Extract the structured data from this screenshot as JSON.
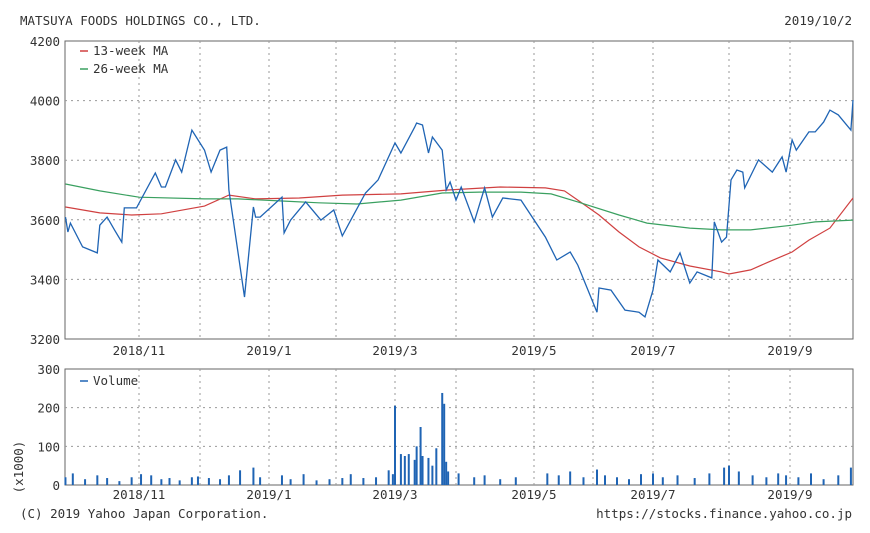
{
  "header": {
    "title": "MATSUYA FOODS HOLDINGS CO., LTD.",
    "date": "2019/10/2"
  },
  "footer": {
    "copyright": "(C) 2019 Yahoo Japan Corporation.",
    "url": "https://stocks.finance.yahoo.co.jp"
  },
  "colors": {
    "price": "#1f64b4",
    "ma13": "#d04040",
    "ma26": "#3aa060",
    "volume": "#1f64b4",
    "grid": "#999999"
  },
  "chart_data": [
    {
      "type": "line",
      "title": "MATSUYA FOODS HOLDINGS CO., LTD.",
      "ylim": [
        3200,
        4200
      ],
      "yticks": [
        "4200",
        "4000",
        "3800",
        "3600",
        "3400",
        "3200"
      ],
      "xticks": [
        {
          "label": "2018/11",
          "date": "2018-11-01"
        },
        {
          "label": "2019/1",
          "date": "2019-01-01"
        },
        {
          "label": "2019/3",
          "date": "2019-03-01"
        },
        {
          "label": "2019/5",
          "date": "2019-05-01"
        },
        {
          "label": "2019/7",
          "date": "2019-07-01"
        },
        {
          "label": "2019/9",
          "date": "2019-09-01"
        }
      ],
      "grid": true,
      "legend": [
        "13-week MA",
        "26-week MA"
      ],
      "legend_position": "top-left",
      "series": [
        {
          "name": "Price",
          "points": [
            [
              "2018-10-02",
              3609
            ],
            [
              "2018-10-03",
              3559
            ],
            [
              "2018-10-04",
              3589
            ],
            [
              "2018-10-09",
              3509
            ],
            [
              "2018-10-15",
              3489
            ],
            [
              "2018-10-16",
              3582
            ],
            [
              "2018-10-19",
              3609
            ],
            [
              "2018-10-22",
              3566
            ],
            [
              "2018-10-25",
              3525
            ],
            [
              "2018-10-26",
              3640
            ],
            [
              "2018-10-31",
              3640
            ],
            [
              "2018-11-09",
              3757
            ],
            [
              "2018-11-12",
              3710
            ],
            [
              "2018-11-14",
              3710
            ],
            [
              "2018-11-19",
              3801
            ],
            [
              "2018-11-22",
              3760
            ],
            [
              "2018-11-27",
              3901
            ],
            [
              "2018-12-03",
              3834
            ],
            [
              "2018-12-06",
              3760
            ],
            [
              "2018-12-10",
              3834
            ],
            [
              "2018-12-13",
              3844
            ],
            [
              "2018-12-14",
              3700
            ],
            [
              "2018-12-21",
              3341
            ],
            [
              "2018-12-25",
              3643
            ],
            [
              "2018-12-26",
              3609
            ],
            [
              "2018-12-28",
              3609
            ],
            [
              "2019-01-07",
              3676
            ],
            [
              "2019-01-08",
              3556
            ],
            [
              "2019-01-11",
              3599
            ],
            [
              "2019-01-18",
              3660
            ],
            [
              "2019-01-25",
              3599
            ],
            [
              "2019-01-31",
              3633
            ],
            [
              "2019-02-04",
              3546
            ],
            [
              "2019-02-08",
              3599
            ],
            [
              "2019-02-15",
              3690
            ],
            [
              "2019-02-21",
              3734
            ],
            [
              "2019-03-01",
              3858
            ],
            [
              "2019-03-04",
              3824
            ],
            [
              "2019-03-11",
              3911
            ],
            [
              "2019-03-12",
              3925
            ],
            [
              "2019-03-15",
              3918
            ],
            [
              "2019-03-18",
              3824
            ],
            [
              "2019-03-20",
              3878
            ],
            [
              "2019-03-25",
              3834
            ],
            [
              "2019-03-27",
              3700
            ],
            [
              "2019-03-29",
              3727
            ],
            [
              "2019-04-01",
              3666
            ],
            [
              "2019-04-03",
              3710
            ],
            [
              "2019-04-08",
              3593
            ],
            [
              "2019-04-12",
              3707
            ],
            [
              "2019-04-15",
              3609
            ],
            [
              "2019-04-19",
              3673
            ],
            [
              "2019-04-26",
              3666
            ],
            [
              "2019-05-07",
              3542
            ],
            [
              "2019-05-13",
              3465
            ],
            [
              "2019-05-20",
              3492
            ],
            [
              "2019-05-24",
              3448
            ],
            [
              "2019-06-03",
              3290
            ],
            [
              "2019-06-04",
              3371
            ],
            [
              "2019-06-10",
              3364
            ],
            [
              "2019-06-17",
              3297
            ],
            [
              "2019-06-24",
              3290
            ],
            [
              "2019-06-27",
              3274
            ],
            [
              "2019-07-01",
              3364
            ],
            [
              "2019-07-03",
              3465
            ],
            [
              "2019-07-08",
              3425
            ],
            [
              "2019-07-12",
              3489
            ],
            [
              "2019-07-16",
              3388
            ],
            [
              "2019-07-19",
              3425
            ],
            [
              "2019-07-25",
              3405
            ],
            [
              "2019-07-26",
              3593
            ],
            [
              "2019-07-29",
              3525
            ],
            [
              "2019-07-31",
              3542
            ],
            [
              "2019-08-02",
              3734
            ],
            [
              "2019-08-05",
              3767
            ],
            [
              "2019-08-08",
              3760
            ],
            [
              "2019-08-09",
              3707
            ],
            [
              "2019-08-16",
              3801
            ],
            [
              "2019-08-23",
              3760
            ],
            [
              "2019-08-28",
              3811
            ],
            [
              "2019-08-30",
              3760
            ],
            [
              "2019-09-02",
              3868
            ],
            [
              "2019-09-04",
              3834
            ],
            [
              "2019-09-10",
              3895
            ],
            [
              "2019-09-13",
              3895
            ],
            [
              "2019-09-17",
              3928
            ],
            [
              "2019-09-20",
              3968
            ],
            [
              "2019-09-24",
              3952
            ],
            [
              "2019-09-30",
              3901
            ],
            [
              "2019-10-02",
              4002
            ]
          ]
        },
        {
          "name": "13-week MA",
          "points": [
            [
              "2018-10-02",
              3643
            ],
            [
              "2018-10-16",
              3623
            ],
            [
              "2018-10-29",
              3616
            ],
            [
              "2018-11-12",
              3620
            ],
            [
              "2018-12-03",
              3646
            ],
            [
              "2018-12-14",
              3683
            ],
            [
              "2018-12-26",
              3670
            ],
            [
              "2019-01-15",
              3673
            ],
            [
              "2019-02-04",
              3683
            ],
            [
              "2019-03-04",
              3687
            ],
            [
              "2019-03-28",
              3700
            ],
            [
              "2019-04-18",
              3710
            ],
            [
              "2019-05-07",
              3707
            ],
            [
              "2019-05-17",
              3697
            ],
            [
              "2019-05-24",
              3666
            ],
            [
              "2019-06-04",
              3616
            ],
            [
              "2019-06-14",
              3559
            ],
            [
              "2019-06-24",
              3509
            ],
            [
              "2019-07-04",
              3472
            ],
            [
              "2019-07-16",
              3445
            ],
            [
              "2019-07-29",
              3425
            ],
            [
              "2019-08-01",
              3418
            ],
            [
              "2019-08-12",
              3432
            ],
            [
              "2019-08-21",
              3458
            ],
            [
              "2019-09-02",
              3492
            ],
            [
              "2019-09-10",
              3532
            ],
            [
              "2019-09-20",
              3572
            ],
            [
              "2019-10-02",
              3673
            ]
          ]
        },
        {
          "name": "26-week MA",
          "points": [
            [
              "2018-10-02",
              3720
            ],
            [
              "2018-10-16",
              3697
            ],
            [
              "2018-11-01",
              3676
            ],
            [
              "2018-12-03",
              3670
            ],
            [
              "2018-12-18",
              3670
            ],
            [
              "2019-01-07",
              3663
            ],
            [
              "2019-01-24",
              3657
            ],
            [
              "2019-02-11",
              3653
            ],
            [
              "2019-03-04",
              3666
            ],
            [
              "2019-03-25",
              3690
            ],
            [
              "2019-04-10",
              3693
            ],
            [
              "2019-04-26",
              3693
            ],
            [
              "2019-05-10",
              3687
            ],
            [
              "2019-05-24",
              3660
            ],
            [
              "2019-06-14",
              3616
            ],
            [
              "2019-06-28",
              3589
            ],
            [
              "2019-07-16",
              3572
            ],
            [
              "2019-07-29",
              3566
            ],
            [
              "2019-08-12",
              3566
            ],
            [
              "2019-09-02",
              3582
            ],
            [
              "2019-09-13",
              3593
            ],
            [
              "2019-10-02",
              3599
            ]
          ]
        }
      ]
    },
    {
      "type": "bar",
      "ylabel": "(x1000)",
      "ylim": [
        0,
        300
      ],
      "yticks": [
        "300",
        "200",
        "100",
        "0"
      ],
      "xticks": [
        {
          "label": "2018/11",
          "date": "2018-11-01"
        },
        {
          "label": "2019/1",
          "date": "2019-01-01"
        },
        {
          "label": "2019/3",
          "date": "2019-03-01"
        },
        {
          "label": "2019/5",
          "date": "2019-05-01"
        },
        {
          "label": "2019/7",
          "date": "2019-07-01"
        },
        {
          "label": "2019/9",
          "date": "2019-09-01"
        }
      ],
      "legend": [
        "Volume"
      ],
      "legend_position": "top-left",
      "series": [
        {
          "name": "Volume",
          "points": [
            [
              "2018-10-02",
              20
            ],
            [
              "2018-10-05",
              30
            ],
            [
              "2018-10-10",
              15
            ],
            [
              "2018-10-15",
              25
            ],
            [
              "2018-10-19",
              18
            ],
            [
              "2018-10-24",
              10
            ],
            [
              "2018-10-29",
              20
            ],
            [
              "2018-11-02",
              28
            ],
            [
              "2018-11-07",
              25
            ],
            [
              "2018-11-12",
              15
            ],
            [
              "2018-11-16",
              18
            ],
            [
              "2018-11-21",
              12
            ],
            [
              "2018-11-27",
              20
            ],
            [
              "2018-11-30",
              22
            ],
            [
              "2018-12-05",
              18
            ],
            [
              "2018-12-10",
              15
            ],
            [
              "2018-12-14",
              25
            ],
            [
              "2018-12-19",
              38
            ],
            [
              "2018-12-25",
              45
            ],
            [
              "2018-12-28",
              20
            ],
            [
              "2019-01-07",
              25
            ],
            [
              "2019-01-11",
              15
            ],
            [
              "2019-01-17",
              28
            ],
            [
              "2019-01-23",
              12
            ],
            [
              "2019-01-29",
              15
            ],
            [
              "2019-02-04",
              18
            ],
            [
              "2019-02-08",
              28
            ],
            [
              "2019-02-14",
              18
            ],
            [
              "2019-02-20",
              20
            ],
            [
              "2019-02-26",
              38
            ],
            [
              "2019-02-28",
              28
            ],
            [
              "2019-03-01",
              205
            ],
            [
              "2019-03-04",
              80
            ],
            [
              "2019-03-06",
              75
            ],
            [
              "2019-03-08",
              80
            ],
            [
              "2019-03-11",
              65
            ],
            [
              "2019-03-12",
              100
            ],
            [
              "2019-03-14",
              150
            ],
            [
              "2019-03-15",
              75
            ],
            [
              "2019-03-18",
              70
            ],
            [
              "2019-03-20",
              50
            ],
            [
              "2019-03-22",
              95
            ],
            [
              "2019-03-25",
              238
            ],
            [
              "2019-03-26",
              210
            ],
            [
              "2019-03-27",
              60
            ],
            [
              "2019-03-28",
              35
            ],
            [
              "2019-04-02",
              30
            ],
            [
              "2019-04-08",
              20
            ],
            [
              "2019-04-12",
              25
            ],
            [
              "2019-04-18",
              15
            ],
            [
              "2019-04-24",
              20
            ],
            [
              "2019-05-08",
              30
            ],
            [
              "2019-05-14",
              25
            ],
            [
              "2019-05-20",
              35
            ],
            [
              "2019-05-27",
              20
            ],
            [
              "2019-06-03",
              40
            ],
            [
              "2019-06-07",
              25
            ],
            [
              "2019-06-13",
              20
            ],
            [
              "2019-06-19",
              15
            ],
            [
              "2019-06-25",
              28
            ],
            [
              "2019-07-01",
              30
            ],
            [
              "2019-07-05",
              20
            ],
            [
              "2019-07-11",
              25
            ],
            [
              "2019-07-18",
              18
            ],
            [
              "2019-07-24",
              30
            ],
            [
              "2019-07-30",
              45
            ],
            [
              "2019-08-01",
              50
            ],
            [
              "2019-08-06",
              35
            ],
            [
              "2019-08-13",
              25
            ],
            [
              "2019-08-20",
              20
            ],
            [
              "2019-08-26",
              30
            ],
            [
              "2019-08-30",
              25
            ],
            [
              "2019-09-05",
              20
            ],
            [
              "2019-09-11",
              30
            ],
            [
              "2019-09-17",
              15
            ],
            [
              "2019-09-24",
              25
            ],
            [
              "2019-09-30",
              45
            ]
          ]
        }
      ]
    }
  ]
}
